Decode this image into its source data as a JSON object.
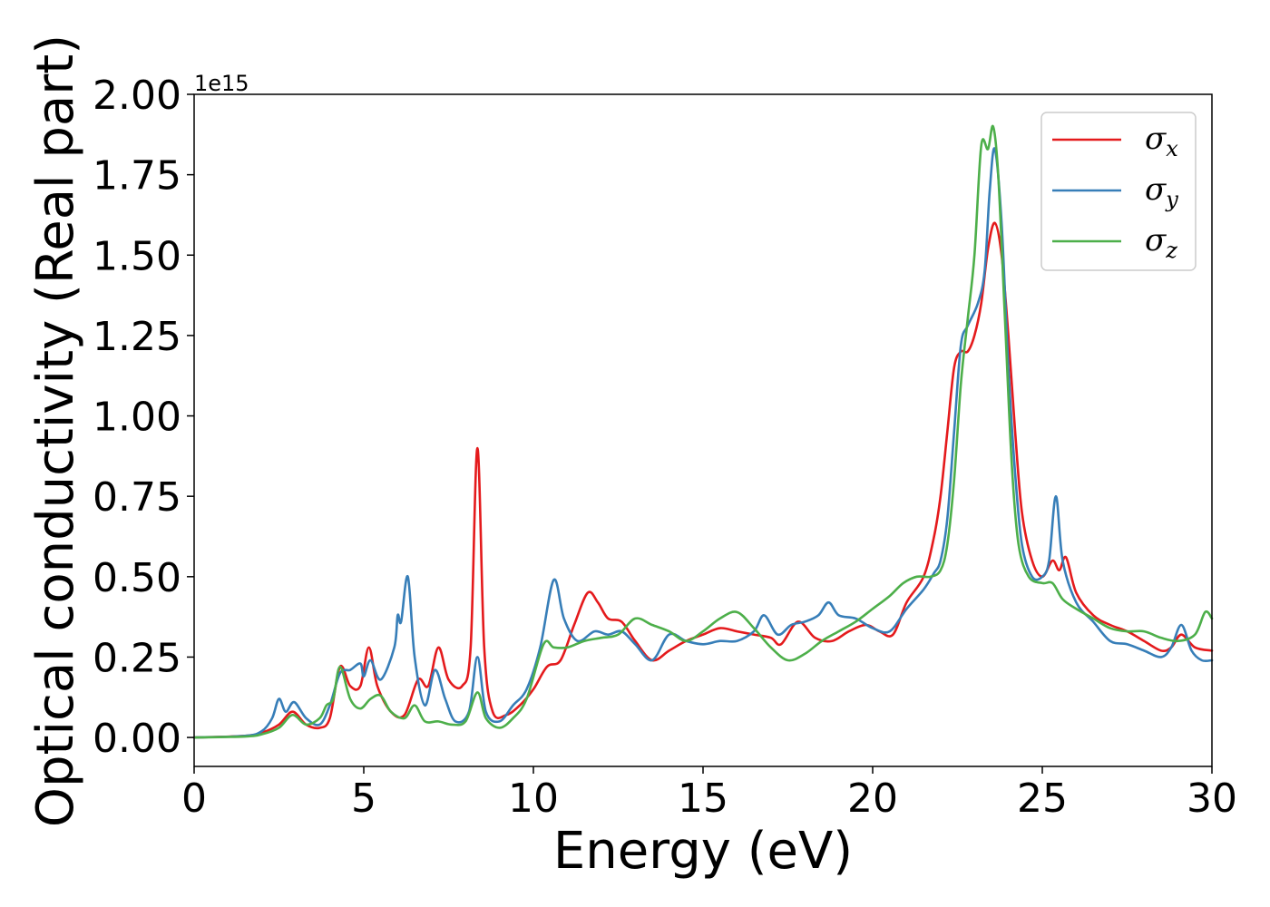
{
  "chart_data": {
    "type": "line",
    "title": "",
    "xlabel": "Energy (eV)",
    "ylabel": "Optical conductivity (Real part)",
    "y_offset_text": "1e15",
    "xlim": [
      0,
      30
    ],
    "ylim": [
      -0.09,
      2.0
    ],
    "x_ticks": [
      0,
      5,
      10,
      15,
      20,
      25,
      30
    ],
    "x_tick_labels": [
      "0",
      "5",
      "10",
      "15",
      "20",
      "25",
      "30"
    ],
    "y_ticks": [
      0.0,
      0.25,
      0.5,
      0.75,
      1.0,
      1.25,
      1.5,
      1.75,
      2.0
    ],
    "y_tick_labels": [
      "0.00",
      "0.25",
      "0.50",
      "0.75",
      "1.00",
      "1.25",
      "1.50",
      "1.75",
      "2.00"
    ],
    "grid": false,
    "legend_position": "top-right",
    "series": [
      {
        "name": "σx",
        "symbol": "σ",
        "subscript": "x",
        "color": "#e41a1c",
        "points": [
          [
            0,
            0
          ],
          [
            1.5,
            0.005
          ],
          [
            2.0,
            0.015
          ],
          [
            2.5,
            0.04
          ],
          [
            2.9,
            0.08
          ],
          [
            3.3,
            0.04
          ],
          [
            3.7,
            0.03
          ],
          [
            4.0,
            0.06
          ],
          [
            4.3,
            0.22
          ],
          [
            4.6,
            0.16
          ],
          [
            4.9,
            0.16
          ],
          [
            5.15,
            0.28
          ],
          [
            5.4,
            0.16
          ],
          [
            5.8,
            0.08
          ],
          [
            6.2,
            0.07
          ],
          [
            6.6,
            0.18
          ],
          [
            6.9,
            0.16
          ],
          [
            7.2,
            0.28
          ],
          [
            7.5,
            0.18
          ],
          [
            7.9,
            0.16
          ],
          [
            8.15,
            0.28
          ],
          [
            8.35,
            0.9
          ],
          [
            8.55,
            0.28
          ],
          [
            8.8,
            0.08
          ],
          [
            9.2,
            0.07
          ],
          [
            9.6,
            0.1
          ],
          [
            10.0,
            0.15
          ],
          [
            10.4,
            0.22
          ],
          [
            10.8,
            0.24
          ],
          [
            11.2,
            0.35
          ],
          [
            11.6,
            0.45
          ],
          [
            11.9,
            0.42
          ],
          [
            12.2,
            0.37
          ],
          [
            12.6,
            0.36
          ],
          [
            13.0,
            0.3
          ],
          [
            13.5,
            0.24
          ],
          [
            14.0,
            0.27
          ],
          [
            14.5,
            0.3
          ],
          [
            15.0,
            0.32
          ],
          [
            15.5,
            0.34
          ],
          [
            16.0,
            0.33
          ],
          [
            16.5,
            0.32
          ],
          [
            17.0,
            0.31
          ],
          [
            17.3,
            0.29
          ],
          [
            17.8,
            0.36
          ],
          [
            18.3,
            0.31
          ],
          [
            18.8,
            0.3
          ],
          [
            19.3,
            0.33
          ],
          [
            19.8,
            0.35
          ],
          [
            20.2,
            0.33
          ],
          [
            20.6,
            0.32
          ],
          [
            21.0,
            0.42
          ],
          [
            21.5,
            0.5
          ],
          [
            21.8,
            0.62
          ],
          [
            22.0,
            0.75
          ],
          [
            22.2,
            0.95
          ],
          [
            22.4,
            1.15
          ],
          [
            22.6,
            1.2
          ],
          [
            22.8,
            1.2
          ],
          [
            23.0,
            1.25
          ],
          [
            23.2,
            1.35
          ],
          [
            23.4,
            1.52
          ],
          [
            23.6,
            1.6
          ],
          [
            23.8,
            1.5
          ],
          [
            24.0,
            1.25
          ],
          [
            24.2,
            0.95
          ],
          [
            24.4,
            0.7
          ],
          [
            24.7,
            0.55
          ],
          [
            25.0,
            0.5
          ],
          [
            25.3,
            0.55
          ],
          [
            25.5,
            0.52
          ],
          [
            25.7,
            0.56
          ],
          [
            26.0,
            0.45
          ],
          [
            26.5,
            0.38
          ],
          [
            27.0,
            0.35
          ],
          [
            27.5,
            0.33
          ],
          [
            28.0,
            0.3
          ],
          [
            28.5,
            0.27
          ],
          [
            28.8,
            0.28
          ],
          [
            29.1,
            0.32
          ],
          [
            29.5,
            0.28
          ],
          [
            30.0,
            0.27
          ]
        ]
      },
      {
        "name": "σy",
        "symbol": "σ",
        "subscript": "y",
        "color": "#377eb8",
        "points": [
          [
            0,
            0
          ],
          [
            1.5,
            0.005
          ],
          [
            2.0,
            0.02
          ],
          [
            2.3,
            0.06
          ],
          [
            2.5,
            0.12
          ],
          [
            2.7,
            0.08
          ],
          [
            2.95,
            0.11
          ],
          [
            3.3,
            0.06
          ],
          [
            3.7,
            0.04
          ],
          [
            4.0,
            0.1
          ],
          [
            4.3,
            0.2
          ],
          [
            4.6,
            0.21
          ],
          [
            4.9,
            0.23
          ],
          [
            5.0,
            0.19
          ],
          [
            5.2,
            0.24
          ],
          [
            5.5,
            0.18
          ],
          [
            5.9,
            0.28
          ],
          [
            6.0,
            0.38
          ],
          [
            6.1,
            0.36
          ],
          [
            6.3,
            0.5
          ],
          [
            6.5,
            0.25
          ],
          [
            6.8,
            0.1
          ],
          [
            7.1,
            0.21
          ],
          [
            7.4,
            0.12
          ],
          [
            7.7,
            0.05
          ],
          [
            8.1,
            0.08
          ],
          [
            8.35,
            0.25
          ],
          [
            8.6,
            0.08
          ],
          [
            9.0,
            0.05
          ],
          [
            9.4,
            0.1
          ],
          [
            9.8,
            0.15
          ],
          [
            10.2,
            0.28
          ],
          [
            10.6,
            0.49
          ],
          [
            10.9,
            0.37
          ],
          [
            11.3,
            0.3
          ],
          [
            11.8,
            0.33
          ],
          [
            12.2,
            0.32
          ],
          [
            12.6,
            0.33
          ],
          [
            13.0,
            0.29
          ],
          [
            13.5,
            0.24
          ],
          [
            14.0,
            0.32
          ],
          [
            14.5,
            0.3
          ],
          [
            15.0,
            0.29
          ],
          [
            15.5,
            0.3
          ],
          [
            16.0,
            0.3
          ],
          [
            16.5,
            0.33
          ],
          [
            16.8,
            0.38
          ],
          [
            17.2,
            0.32
          ],
          [
            17.6,
            0.35
          ],
          [
            18.0,
            0.36
          ],
          [
            18.4,
            0.38
          ],
          [
            18.7,
            0.42
          ],
          [
            19.0,
            0.38
          ],
          [
            19.5,
            0.37
          ],
          [
            20.0,
            0.34
          ],
          [
            20.5,
            0.33
          ],
          [
            21.0,
            0.4
          ],
          [
            21.5,
            0.46
          ],
          [
            21.8,
            0.51
          ],
          [
            22.0,
            0.55
          ],
          [
            22.2,
            0.68
          ],
          [
            22.4,
            0.95
          ],
          [
            22.6,
            1.22
          ],
          [
            22.8,
            1.28
          ],
          [
            23.1,
            1.35
          ],
          [
            23.3,
            1.45
          ],
          [
            23.45,
            1.7
          ],
          [
            23.6,
            1.83
          ],
          [
            23.8,
            1.6
          ],
          [
            24.0,
            1.15
          ],
          [
            24.2,
            0.82
          ],
          [
            24.4,
            0.6
          ],
          [
            24.7,
            0.5
          ],
          [
            25.0,
            0.5
          ],
          [
            25.2,
            0.55
          ],
          [
            25.4,
            0.75
          ],
          [
            25.6,
            0.55
          ],
          [
            26.0,
            0.42
          ],
          [
            26.5,
            0.36
          ],
          [
            27.0,
            0.3
          ],
          [
            27.5,
            0.29
          ],
          [
            28.0,
            0.27
          ],
          [
            28.5,
            0.25
          ],
          [
            28.8,
            0.28
          ],
          [
            29.1,
            0.35
          ],
          [
            29.4,
            0.27
          ],
          [
            29.7,
            0.24
          ],
          [
            30.0,
            0.24
          ]
        ]
      },
      {
        "name": "σz",
        "symbol": "σ",
        "subscript": "z",
        "color": "#4daf4a",
        "points": [
          [
            0,
            0
          ],
          [
            1.5,
            0.003
          ],
          [
            2.0,
            0.01
          ],
          [
            2.5,
            0.03
          ],
          [
            2.9,
            0.07
          ],
          [
            3.3,
            0.04
          ],
          [
            3.7,
            0.06
          ],
          [
            3.9,
            0.1
          ],
          [
            4.1,
            0.12
          ],
          [
            4.3,
            0.22
          ],
          [
            4.6,
            0.12
          ],
          [
            4.9,
            0.09
          ],
          [
            5.2,
            0.12
          ],
          [
            5.5,
            0.13
          ],
          [
            5.8,
            0.08
          ],
          [
            6.2,
            0.06
          ],
          [
            6.5,
            0.1
          ],
          [
            6.8,
            0.05
          ],
          [
            7.2,
            0.05
          ],
          [
            7.6,
            0.04
          ],
          [
            8.0,
            0.05
          ],
          [
            8.35,
            0.14
          ],
          [
            8.6,
            0.06
          ],
          [
            9.0,
            0.03
          ],
          [
            9.4,
            0.06
          ],
          [
            9.8,
            0.12
          ],
          [
            10.3,
            0.29
          ],
          [
            10.6,
            0.28
          ],
          [
            11.0,
            0.28
          ],
          [
            11.5,
            0.3
          ],
          [
            12.0,
            0.31
          ],
          [
            12.5,
            0.32
          ],
          [
            13.0,
            0.37
          ],
          [
            13.5,
            0.35
          ],
          [
            14.0,
            0.33
          ],
          [
            14.5,
            0.3
          ],
          [
            15.0,
            0.33
          ],
          [
            15.5,
            0.37
          ],
          [
            16.0,
            0.39
          ],
          [
            16.5,
            0.34
          ],
          [
            17.0,
            0.28
          ],
          [
            17.5,
            0.24
          ],
          [
            18.0,
            0.26
          ],
          [
            18.5,
            0.3
          ],
          [
            19.0,
            0.33
          ],
          [
            19.5,
            0.36
          ],
          [
            20.0,
            0.4
          ],
          [
            20.5,
            0.44
          ],
          [
            20.9,
            0.48
          ],
          [
            21.3,
            0.5
          ],
          [
            21.7,
            0.5
          ],
          [
            22.0,
            0.52
          ],
          [
            22.2,
            0.6
          ],
          [
            22.4,
            0.8
          ],
          [
            22.6,
            1.1
          ],
          [
            22.8,
            1.3
          ],
          [
            23.0,
            1.5
          ],
          [
            23.2,
            1.84
          ],
          [
            23.4,
            1.83
          ],
          [
            23.55,
            1.9
          ],
          [
            23.7,
            1.75
          ],
          [
            23.9,
            1.3
          ],
          [
            24.1,
            0.85
          ],
          [
            24.3,
            0.6
          ],
          [
            24.6,
            0.5
          ],
          [
            25.0,
            0.48
          ],
          [
            25.3,
            0.48
          ],
          [
            25.6,
            0.43
          ],
          [
            26.0,
            0.4
          ],
          [
            26.5,
            0.37
          ],
          [
            27.0,
            0.34
          ],
          [
            27.5,
            0.33
          ],
          [
            28.0,
            0.33
          ],
          [
            28.5,
            0.31
          ],
          [
            29.0,
            0.3
          ],
          [
            29.5,
            0.32
          ],
          [
            29.8,
            0.39
          ],
          [
            30.0,
            0.37
          ]
        ]
      }
    ]
  }
}
